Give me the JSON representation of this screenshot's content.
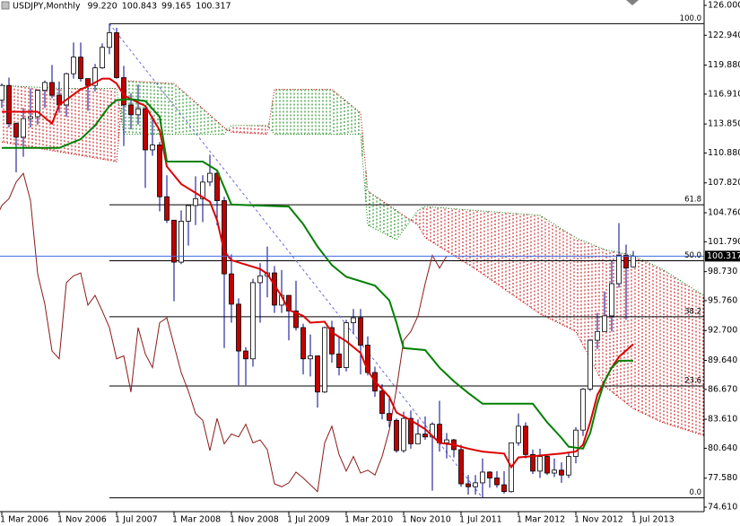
{
  "chart_data": {
    "type": "candlestick",
    "title": "USDJPY,Monthly",
    "ohlc_labels": [
      "99.220",
      "100.843",
      "99.165",
      "100.317"
    ],
    "x": [
      0,
      1,
      2,
      3,
      4,
      5,
      6,
      7,
      8,
      9,
      10,
      11,
      12,
      13,
      14,
      15,
      16,
      17,
      18,
      19,
      20,
      21,
      22,
      23,
      24,
      25,
      26,
      27,
      28,
      29,
      30,
      31,
      32,
      33,
      34,
      35,
      36,
      37,
      38,
      39,
      40,
      41,
      42,
      43,
      44,
      45,
      46,
      47,
      48,
      49,
      50,
      51,
      52,
      53,
      54,
      55,
      56,
      57,
      58,
      59,
      60,
      61,
      62,
      63,
      64,
      65,
      66,
      67,
      68,
      69,
      70,
      71,
      72,
      73,
      74,
      75,
      76,
      77,
      78,
      79,
      80,
      81,
      82,
      83,
      84,
      85,
      86,
      87,
      88
    ],
    "open": [
      116.3,
      117.8,
      113.9,
      112.5,
      114.4,
      114.6,
      117.3,
      118.1,
      116.8,
      115.8,
      119.0,
      120.7,
      118.5,
      117.8,
      119.6,
      121.7,
      123.2,
      118.6,
      115.8,
      114.8,
      115.4,
      111.2,
      111.7,
      106.4,
      104.0,
      99.7,
      103.9,
      105.5,
      106.2,
      107.9,
      108.8,
      106.0,
      98.5,
      95.4,
      90.6,
      89.8,
      97.6,
      98.3,
      98.6,
      95.3,
      96.3,
      94.7,
      93.0,
      89.8,
      90.1,
      86.4,
      93.0,
      90.3,
      88.9,
      93.5,
      94.0,
      91.2,
      88.4,
      86.5,
      84.2,
      83.5,
      80.4,
      83.7,
      81.1,
      82.1,
      81.8,
      83.1,
      81.2,
      81.5,
      80.5,
      77.0,
      76.7,
      77.1,
      78.2,
      77.6,
      76.9,
      76.2,
      81.2,
      82.9,
      80.0,
      78.3,
      79.8,
      78.1,
      78.4,
      77.9,
      79.8,
      82.5,
      86.7,
      91.7,
      92.6,
      94.2,
      97.5,
      100.4,
      99.22
    ],
    "high": [
      118.0,
      118.6,
      114.0,
      115.5,
      117.5,
      117.4,
      118.3,
      119.9,
      118.2,
      119.1,
      122.2,
      122.2,
      118.5,
      120.0,
      122.1,
      124.13,
      123.7,
      119.8,
      117.0,
      117.9,
      115.6,
      114.7,
      112.0,
      108.6,
      104.0,
      105.0,
      105.5,
      108.5,
      108.6,
      110.7,
      109.0,
      106.4,
      100.5,
      96.0,
      91.0,
      98.0,
      99.6,
      101.3,
      99.3,
      98.9,
      96.3,
      97.8,
      93.4,
      92.3,
      90.1,
      93.1,
      93.7,
      92.1,
      93.8,
      94.9,
      94.9,
      92.1,
      89.0,
      87.2,
      86.0,
      83.7,
      84.4,
      84.5,
      83.6,
      83.9,
      83.3,
      85.5,
      82.2,
      81.6,
      81.0,
      77.9,
      77.9,
      79.6,
      78.3,
      78.3,
      78.3,
      81.2,
      84.2,
      83.3,
      80.5,
      80.6,
      79.9,
      79.6,
      79.2,
      80.3,
      82.8,
      86.8,
      91.8,
      94.5,
      96.7,
      99.9,
      103.7,
      101.5,
      100.843
    ],
    "low": [
      115.5,
      113.5,
      108.9,
      110.5,
      113.5,
      113.8,
      115.5,
      116.5,
      115.0,
      114.6,
      118.5,
      118.2,
      115.2,
      117.2,
      119.5,
      121.0,
      118.5,
      111.6,
      113.3,
      113.8,
      107.3,
      110.6,
      104.9,
      103.7,
      95.7,
      99.5,
      101.4,
      103.5,
      103.8,
      107.5,
      103.5,
      90.9,
      93.5,
      87.1,
      87.1,
      89.0,
      93.5,
      96.1,
      94.5,
      94.5,
      91.7,
      92.7,
      88.2,
      88.0,
      84.8,
      86.3,
      89.4,
      88.1,
      88.5,
      92.4,
      88.2,
      88.1,
      85.9,
      83.6,
      82.8,
      80.2,
      80.2,
      80.6,
      81.1,
      81.5,
      76.3,
      80.3,
      79.6,
      79.7,
      76.7,
      75.9,
      75.9,
      75.56,
      76.6,
      76.6,
      76.0,
      76.1,
      80.9,
      79.6,
      78.0,
      77.6,
      77.9,
      77.7,
      77.1,
      77.6,
      79.1,
      81.9,
      86.5,
      90.8,
      92.6,
      92.6,
      97.1,
      93.8,
      99.165
    ],
    "close": [
      117.8,
      113.9,
      112.5,
      114.4,
      114.6,
      117.3,
      118.1,
      116.8,
      115.8,
      119.0,
      120.7,
      118.5,
      117.8,
      119.6,
      121.7,
      123.2,
      118.6,
      115.8,
      114.8,
      115.4,
      111.2,
      111.7,
      106.4,
      104.0,
      99.7,
      103.9,
      105.5,
      106.2,
      107.9,
      108.8,
      106.0,
      98.5,
      95.4,
      90.6,
      89.8,
      97.6,
      98.3,
      98.6,
      95.3,
      96.3,
      94.7,
      93.0,
      89.8,
      90.1,
      86.4,
      93.0,
      90.3,
      88.9,
      93.5,
      94.0,
      91.2,
      88.4,
      86.5,
      84.2,
      83.5,
      80.4,
      83.7,
      81.1,
      82.1,
      81.8,
      83.1,
      81.2,
      81.5,
      80.5,
      77.0,
      76.7,
      77.1,
      78.2,
      77.6,
      76.9,
      76.2,
      81.2,
      82.9,
      80.0,
      78.3,
      79.8,
      78.1,
      78.4,
      77.9,
      79.8,
      82.5,
      86.7,
      91.7,
      92.6,
      94.2,
      97.5,
      100.4,
      99.1,
      100.317
    ],
    "up_color": "#ffffff",
    "down_color": "#c00000",
    "candle_outline": "#000000",
    "wick_color": "#00008b",
    "lines": [
      {
        "color": "#dd0000",
        "width": 2,
        "x": [
          0,
          5,
          7,
          8,
          11,
          12,
          14,
          15,
          16,
          17,
          18,
          20,
          22,
          23,
          25,
          27,
          29,
          30,
          31,
          32,
          36,
          37,
          39,
          40,
          42,
          43,
          45,
          46,
          48,
          50,
          51,
          52,
          54,
          55,
          57,
          59,
          61,
          63,
          65,
          67,
          70,
          71,
          72,
          75,
          78,
          80,
          81,
          82,
          83,
          85,
          86,
          88
        ],
        "values": [
          115.1,
          115.1,
          113.9,
          115.8,
          117.4,
          117.7,
          118.5,
          118.5,
          118.0,
          116.8,
          116.4,
          115.7,
          113.2,
          109.5,
          107.7,
          106.8,
          105.9,
          104.0,
          100.8,
          99.9,
          99.0,
          98.5,
          96.2,
          94.8,
          94.2,
          93.5,
          93.6,
          92.5,
          91.6,
          90.4,
          88.6,
          87.5,
          85.9,
          84.3,
          83.5,
          82.6,
          81.2,
          81.0,
          80.6,
          80.3,
          80.1,
          78.7,
          79.7,
          79.9,
          80.1,
          80.3,
          81.0,
          83.3,
          86.1,
          88.9,
          90.0,
          91.3
        ]
      },
      {
        "color": "#008000",
        "width": 2,
        "x": [
          0,
          8,
          11,
          13,
          15,
          16,
          18,
          20,
          22,
          23,
          28,
          30,
          32,
          40,
          42,
          44,
          46,
          48,
          52,
          54,
          55,
          56,
          59,
          61,
          63,
          65,
          67,
          74,
          76,
          78,
          79,
          81,
          82,
          83,
          84,
          85,
          86,
          88
        ],
        "values": [
          111.4,
          111.4,
          112.3,
          113.7,
          115.7,
          116.3,
          116.4,
          116.2,
          114.6,
          110.0,
          110.0,
          109.1,
          105.6,
          105.4,
          103.6,
          101.3,
          99.4,
          98.2,
          97.3,
          95.8,
          93.5,
          90.9,
          90.7,
          88.9,
          87.5,
          86.3,
          85.2,
          85.2,
          83.3,
          81.7,
          80.8,
          80.6,
          82.2,
          85.2,
          87.5,
          88.9,
          89.6,
          89.6
        ]
      }
    ],
    "chikou_shift": -26,
    "chikou_color": "#8b1a1a",
    "cloud": {
      "x": [
        0,
        8,
        16,
        17,
        24,
        31,
        32,
        37,
        38,
        46,
        50,
        51,
        55,
        58,
        59,
        66,
        75,
        80,
        84,
        88,
        92,
        98
      ],
      "span_a": [
        112.0,
        111.0,
        110.0,
        118.3,
        118.0,
        113.5,
        113.0,
        112.8,
        117.4,
        117.4,
        115.0,
        107.0,
        105.0,
        103.5,
        102.2,
        99.0,
        94.4,
        92.6,
        87.0,
        84.7,
        83.3,
        81.9
      ],
      "span_b": [
        117.8,
        117.5,
        117.5,
        112.8,
        112.8,
        112.8,
        113.7,
        113.7,
        112.8,
        112.8,
        112.8,
        103.5,
        102.0,
        105.0,
        105.4,
        105.0,
        104.5,
        102.2,
        101.0,
        100.4,
        99.0,
        96.2
      ],
      "up_color": "#008000",
      "down_color": "#c00000"
    },
    "fibonacci": {
      "from_x": 15,
      "to_x": 67,
      "color": "#000000",
      "trend_color": "#6a6ad8",
      "levels": [
        {
          "value": 124.13,
          "label": "100.0"
        },
        {
          "value": 105.58,
          "label": "61.8"
        },
        {
          "value": 99.85,
          "label": "50.0"
        },
        {
          "value": 94.11,
          "label": "38.2"
        },
        {
          "value": 87.02,
          "label": "23.6"
        },
        {
          "value": 75.56,
          "label": "0.0"
        }
      ]
    },
    "price_line_color": "#4169e1",
    "xlim": [
      -0.25,
      97.875
    ],
    "xticks": [
      {
        "value": 0,
        "label": "1 Mar 2006"
      },
      {
        "value": 8,
        "label": "1 Nov 2006"
      },
      {
        "value": 16,
        "label": "1 Jul 2007"
      },
      {
        "value": 24,
        "label": "1 Mar 2008"
      },
      {
        "value": 32,
        "label": "1 Nov 2008"
      },
      {
        "value": 40,
        "label": "1 Jul 2009"
      },
      {
        "value": 48,
        "label": "1 Mar 2010"
      },
      {
        "value": 56,
        "label": "1 Nov 2010"
      },
      {
        "value": 64,
        "label": "1 Jul 2011"
      },
      {
        "value": 72,
        "label": "1 Mar 2012"
      },
      {
        "value": 80,
        "label": "1 Nov 2012"
      },
      {
        "value": 88,
        "label": "1 Jul 2013"
      }
    ],
    "ylim": [
      74.15,
      126.55
    ],
    "yticks": [
      {
        "value": 126.0,
        "label": "126.000"
      },
      {
        "value": 122.94,
        "label": "122.940"
      },
      {
        "value": 119.88,
        "label": "119.880"
      },
      {
        "value": 116.91,
        "label": "116.910"
      },
      {
        "value": 113.85,
        "label": "113.850"
      },
      {
        "value": 110.88,
        "label": "110.880"
      },
      {
        "value": 107.82,
        "label": "107.820"
      },
      {
        "value": 104.76,
        "label": "104.760"
      },
      {
        "value": 101.79,
        "label": "101.790"
      },
      {
        "value": 98.73,
        "label": "98.730"
      },
      {
        "value": 95.76,
        "label": "95.760"
      },
      {
        "value": 92.7,
        "label": "92.700"
      },
      {
        "value": 89.64,
        "label": "89.640"
      },
      {
        "value": 86.67,
        "label": "86.670"
      },
      {
        "value": 83.61,
        "label": "83.610"
      },
      {
        "value": 80.64,
        "label": "80.640"
      },
      {
        "value": 77.58,
        "label": "77.580"
      },
      {
        "value": 74.61,
        "label": "74.610"
      }
    ]
  }
}
